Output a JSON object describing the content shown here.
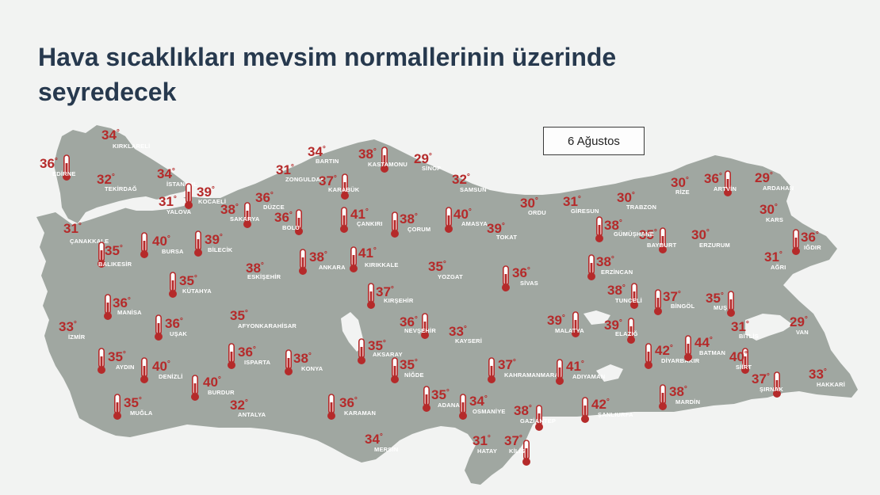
{
  "title": "Hava sıcaklıkları mevsim normallerinin üzerinde seyredecek",
  "date_label": "6 Ağustos",
  "colors": {
    "land": "#a0a7a1",
    "temperature": "#b52a2a",
    "city_label": "#ffffff",
    "title": "#27394e"
  },
  "degree_symbol": "°",
  "cities": [
    {
      "name": "KIRKLARELİ",
      "temp": "34",
      "icon": false
    },
    {
      "name": "EDİRNE",
      "temp": "36",
      "icon": true
    },
    {
      "name": "TEKİRDAĞ",
      "temp": "32",
      "icon": false
    },
    {
      "name": "İSTANBUL",
      "temp": "34",
      "icon": false
    },
    {
      "name": "KOCAELİ",
      "temp": "39",
      "icon": true
    },
    {
      "name": "YALOVA",
      "temp": "31",
      "icon": false
    },
    {
      "name": "SAKARYA",
      "temp": "38",
      "icon": true
    },
    {
      "name": "DÜZCE",
      "temp": "36",
      "icon": true
    },
    {
      "name": "BOLU",
      "temp": "36",
      "icon": true
    },
    {
      "name": "ZONGULDAK",
      "temp": "31",
      "icon": false
    },
    {
      "name": "BARTIN",
      "temp": "34",
      "icon": false
    },
    {
      "name": "KARABÜK",
      "temp": "37",
      "icon": true
    },
    {
      "name": "KASTAMONU",
      "temp": "38",
      "icon": true
    },
    {
      "name": "SİNOP",
      "temp": "29",
      "icon": false
    },
    {
      "name": "ÇANKIRI",
      "temp": "41",
      "icon": true
    },
    {
      "name": "ÇORUM",
      "temp": "38",
      "icon": true
    },
    {
      "name": "SAMSUN",
      "temp": "32",
      "icon": false
    },
    {
      "name": "AMASYA",
      "temp": "40",
      "icon": true
    },
    {
      "name": "TOKAT",
      "temp": "39",
      "icon": false
    },
    {
      "name": "ORDU",
      "temp": "30",
      "icon": false
    },
    {
      "name": "GİRESUN",
      "temp": "31",
      "icon": false
    },
    {
      "name": "TRABZON",
      "temp": "30",
      "icon": false
    },
    {
      "name": "RİZE",
      "temp": "30",
      "icon": false
    },
    {
      "name": "ARTVİN",
      "temp": "36",
      "icon": true
    },
    {
      "name": "ARDAHAN",
      "temp": "29",
      "icon": false
    },
    {
      "name": "KARS",
      "temp": "30",
      "icon": false
    },
    {
      "name": "IĞDIR",
      "temp": "36",
      "icon": true
    },
    {
      "name": "AĞRI",
      "temp": "31",
      "icon": false
    },
    {
      "name": "ERZURUM",
      "temp": "30",
      "icon": false
    },
    {
      "name": "BAYBURT",
      "temp": "35",
      "icon": true
    },
    {
      "name": "GÜMÜŞHANE",
      "temp": "38",
      "icon": true
    },
    {
      "name": "ERZİNCAN",
      "temp": "38",
      "icon": true
    },
    {
      "name": "ÇANAKKALE",
      "temp": "31",
      "icon": false
    },
    {
      "name": "BALIKESİR",
      "temp": "35",
      "icon": true
    },
    {
      "name": "BURSA",
      "temp": "40",
      "icon": true
    },
    {
      "name": "BİLECİK",
      "temp": "39",
      "icon": true
    },
    {
      "name": "ESKİŞEHİR",
      "temp": "38",
      "icon": false
    },
    {
      "name": "ANKARA",
      "temp": "38",
      "icon": true
    },
    {
      "name": "KIRIKKALE",
      "temp": "41",
      "icon": true
    },
    {
      "name": "YOZGAT",
      "temp": "35",
      "icon": false
    },
    {
      "name": "SİVAS",
      "temp": "36",
      "icon": true
    },
    {
      "name": "KÜTAHYA",
      "temp": "35",
      "icon": true
    },
    {
      "name": "KIRŞEHİR",
      "temp": "37",
      "icon": true
    },
    {
      "name": "MANİSA",
      "temp": "36",
      "icon": true
    },
    {
      "name": "İZMİR",
      "temp": "33",
      "icon": false
    },
    {
      "name": "UŞAK",
      "temp": "36",
      "icon": true
    },
    {
      "name": "AFYONKARAHİSAR",
      "temp": "35",
      "icon": false
    },
    {
      "name": "NEVŞEHİR",
      "temp": "36",
      "icon": true
    },
    {
      "name": "KAYSERİ",
      "temp": "33",
      "icon": false
    },
    {
      "name": "MALATYA",
      "temp": "39",
      "icon": true
    },
    {
      "name": "TUNCELİ",
      "temp": "38",
      "icon": true
    },
    {
      "name": "BİNGÖL",
      "temp": "37",
      "icon": true
    },
    {
      "name": "MUŞ",
      "temp": "35",
      "icon": true
    },
    {
      "name": "ELAZIĞ",
      "temp": "39",
      "icon": true
    },
    {
      "name": "BİTLİS",
      "temp": "31",
      "icon": false
    },
    {
      "name": "VAN",
      "temp": "29",
      "icon": false
    },
    {
      "name": "AYDIN",
      "temp": "35",
      "icon": true
    },
    {
      "name": "DENİZLİ",
      "temp": "40",
      "icon": true
    },
    {
      "name": "ISPARTA",
      "temp": "36",
      "icon": true
    },
    {
      "name": "KONYA",
      "temp": "38",
      "icon": true
    },
    {
      "name": "AKSARAY",
      "temp": "35",
      "icon": true
    },
    {
      "name": "NİĞDE",
      "temp": "35",
      "icon": true
    },
    {
      "name": "KAHRAMANMARAŞ",
      "temp": "37",
      "icon": true
    },
    {
      "name": "ADIYAMAN",
      "temp": "41",
      "icon": true
    },
    {
      "name": "DİYARBAKIR",
      "temp": "42",
      "icon": true
    },
    {
      "name": "BATMAN",
      "temp": "44",
      "icon": true
    },
    {
      "name": "SİİRT",
      "temp": "40",
      "icon": true
    },
    {
      "name": "ŞIRNAK",
      "temp": "37",
      "icon": true
    },
    {
      "name": "HAKKARİ",
      "temp": "33",
      "icon": false
    },
    {
      "name": "MUĞLA",
      "temp": "35",
      "icon": true
    },
    {
      "name": "BURDUR",
      "temp": "40",
      "icon": true
    },
    {
      "name": "ANTALYA",
      "temp": "32",
      "icon": false
    },
    {
      "name": "KARAMAN",
      "temp": "36",
      "icon": true
    },
    {
      "name": "ADANA",
      "temp": "35",
      "icon": true
    },
    {
      "name": "OSMANİYE",
      "temp": "34",
      "icon": true
    },
    {
      "name": "GAZİANTEP",
      "temp": "38",
      "icon": true
    },
    {
      "name": "ŞANLIURFA",
      "temp": "42",
      "icon": true
    },
    {
      "name": "MARDİN",
      "temp": "38",
      "icon": true
    },
    {
      "name": "MERSİN",
      "temp": "34",
      "icon": false
    },
    {
      "name": "HATAY",
      "temp": "31",
      "icon": false
    },
    {
      "name": "KİLİS",
      "temp": "37",
      "icon": true
    }
  ]
}
